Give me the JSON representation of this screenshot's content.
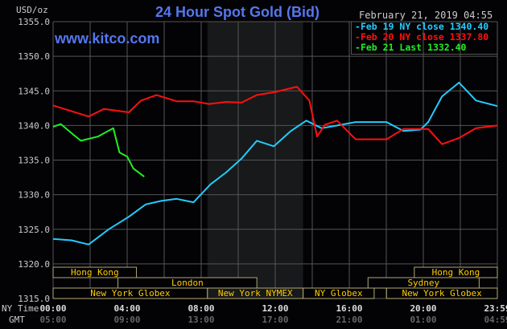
{
  "header": {
    "title": "24 Hour Spot Gold (Bid)",
    "site": "www.kitco.com",
    "units": "USD/oz",
    "datetime": "February 21, 2019 04:55"
  },
  "colors": {
    "title": "#5577ee",
    "series_cyan": "#22ccff",
    "series_red": "#ff1010",
    "series_green": "#22ee22",
    "session_text": "#ffcc00",
    "session_border": "#b0a870",
    "grid": "#555555",
    "shaded": "#17191a"
  },
  "sessions": [
    {
      "label": "Hong Kong",
      "start": "00:00",
      "end": "04:30",
      "row": 0
    },
    {
      "label": "London",
      "start": "03:30",
      "end": "11:00",
      "row": 1
    },
    {
      "label": "New York Globex",
      "start": "00:00",
      "end": "08:20",
      "row": 2
    },
    {
      "label": "New York NYMEX",
      "start": "08:20",
      "end": "13:30",
      "row": 2
    },
    {
      "label": "NY Globex",
      "start": "13:30",
      "end": "17:20",
      "row": 2
    },
    {
      "label": "New York Globex",
      "start": "18:00",
      "end": "23:59",
      "row": 2
    },
    {
      "label": "Sydney",
      "start": "17:00",
      "end": "23:00",
      "row": 1
    },
    {
      "label": "Hong Kong",
      "start": "19:30",
      "end": "23:59",
      "row": 0
    }
  ],
  "chart_data": {
    "type": "line",
    "title": "24 Hour Spot Gold (Bid)",
    "ylabel": "USD/oz",
    "ylim": [
      1315,
      1355
    ],
    "yticks": [
      "1315.0",
      "1320.0",
      "1325.0",
      "1330.0",
      "1335.0",
      "1340.0",
      "1345.0",
      "1350.0",
      "1355.0"
    ],
    "xlim": [
      "00:00",
      "23:59"
    ],
    "xlabel_rows": [
      "NY Time",
      "GMT"
    ],
    "xticks_ny": [
      "00:00",
      "04:00",
      "08:00",
      "12:00",
      "16:00",
      "20:00",
      "23:59"
    ],
    "xticks_gmt": [
      "05:00",
      "09:00",
      "13:00",
      "17:00",
      "21:00",
      "01:00",
      "04:59"
    ],
    "grid": true,
    "shaded_range": [
      "08:20",
      "13:30"
    ],
    "legend_position": "top-right",
    "series": [
      {
        "name": "Feb 19 NY close 1340.40",
        "color": "#22ccff",
        "points": [
          [
            "00:00",
            1323.6
          ],
          [
            "01:00",
            1323.4
          ],
          [
            "01:55",
            1322.8
          ],
          [
            "03:00",
            1325.0
          ],
          [
            "04:05",
            1326.8
          ],
          [
            "05:00",
            1328.6
          ],
          [
            "05:50",
            1329.1
          ],
          [
            "06:40",
            1329.4
          ],
          [
            "07:35",
            1328.9
          ],
          [
            "08:30",
            1331.5
          ],
          [
            "09:20",
            1333.2
          ],
          [
            "10:10",
            1335.2
          ],
          [
            "11:00",
            1337.8
          ],
          [
            "11:55",
            1337.0
          ],
          [
            "12:50",
            1339.2
          ],
          [
            "13:40",
            1340.7
          ],
          [
            "14:30",
            1339.6
          ],
          [
            "15:20",
            1340.0
          ],
          [
            "16:20",
            1340.5
          ],
          [
            "18:00",
            1340.5
          ],
          [
            "18:55",
            1339.2
          ],
          [
            "19:50",
            1339.4
          ],
          [
            "20:15",
            1340.5
          ],
          [
            "21:00",
            1344.2
          ],
          [
            "21:55",
            1346.2
          ],
          [
            "22:50",
            1343.6
          ],
          [
            "23:59",
            1342.8
          ]
        ]
      },
      {
        "name": "Feb 20 NY close 1337.80",
        "color": "#ff1010",
        "points": [
          [
            "00:00",
            1342.9
          ],
          [
            "01:55",
            1341.3
          ],
          [
            "02:45",
            1342.4
          ],
          [
            "04:05",
            1341.9
          ],
          [
            "04:45",
            1343.6
          ],
          [
            "05:35",
            1344.4
          ],
          [
            "06:40",
            1343.5
          ],
          [
            "07:35",
            1343.5
          ],
          [
            "08:25",
            1343.1
          ],
          [
            "09:20",
            1343.4
          ],
          [
            "10:10",
            1343.3
          ],
          [
            "11:00",
            1344.4
          ],
          [
            "11:55",
            1344.8
          ],
          [
            "13:10",
            1345.6
          ],
          [
            "13:50",
            1343.6
          ],
          [
            "14:15",
            1338.4
          ],
          [
            "14:40",
            1340.1
          ],
          [
            "15:20",
            1340.7
          ],
          [
            "16:20",
            1338.0
          ],
          [
            "18:00",
            1338.0
          ],
          [
            "18:55",
            1339.5
          ],
          [
            "20:15",
            1339.5
          ],
          [
            "21:00",
            1337.3
          ],
          [
            "21:55",
            1338.2
          ],
          [
            "22:50",
            1339.6
          ],
          [
            "23:59",
            1340.0
          ]
        ]
      },
      {
        "name": "Feb 21 Last 1332.40",
        "color": "#22ee22",
        "points": [
          [
            "00:00",
            1339.8
          ],
          [
            "00:25",
            1340.2
          ],
          [
            "01:05",
            1338.7
          ],
          [
            "01:30",
            1337.8
          ],
          [
            "02:25",
            1338.4
          ],
          [
            "03:15",
            1339.6
          ],
          [
            "03:35",
            1336.1
          ],
          [
            "04:00",
            1335.5
          ],
          [
            "04:20",
            1333.8
          ],
          [
            "04:55",
            1332.6
          ]
        ]
      }
    ]
  }
}
